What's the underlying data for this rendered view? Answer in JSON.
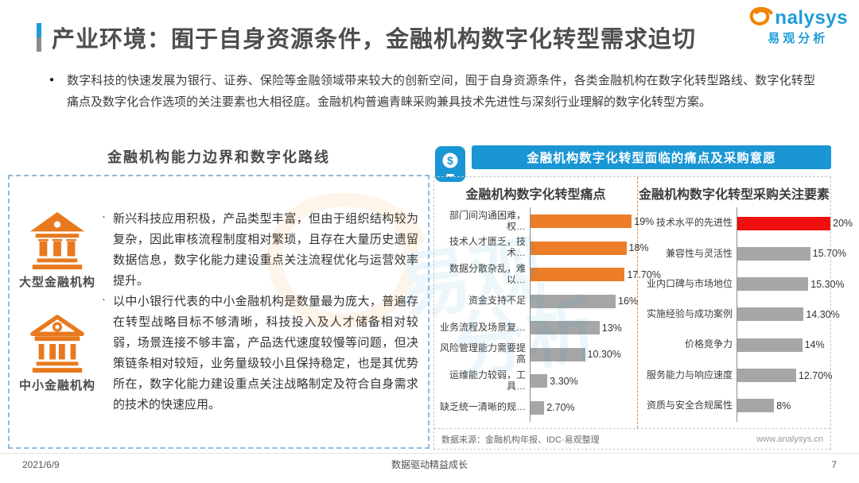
{
  "page": {
    "title": "产业环境：囿于自身资源条件，金融机构数字化转型需求迫切",
    "bullet": "●",
    "intro": "数字科技的快速发展为银行、证券、保险等金融领域带来较大的创新空间，囿于自身资源条件，各类金融机构在数字化转型路线、数字化转型痛点及数字化合作选项的关注要素也大相径庭。金融机构普遍青睐采购兼具技术先进性与深刻行业理解的数字化转型方案。",
    "footer": {
      "date": "2021/6/9",
      "slogan": "数据驱动精益成长",
      "page_number": "7"
    }
  },
  "logo": {
    "brand_text": "nalysys",
    "brand_cn": "易观分析",
    "swirl_icon": "analysys-swirl-icon"
  },
  "left_panel": {
    "heading": "金融机构能力边界和数字化路线",
    "item_bullet": "·",
    "items": [
      {
        "label": "大型金融机构",
        "icon": "bank-solid-icon",
        "text": "新兴科技应用积极，产品类型丰富，但由于组织结构较为复杂，因此审核流程制度相对繁琐，且存在大量历史遗留数据信息，数字化能力建设重点关注流程优化与运营效率提升。"
      },
      {
        "label": "中小金融机构",
        "icon": "bank-outline-icon",
        "text": "以中小银行代表的中小金融机构是数量最为庞大，普遍存在转型战略目标不够清晰，科技投入及人才储备相对较弱，场景连接不够丰富，产品迭代速度较慢等问题，但决策链条相对较短，业务量级较小且保持稳定，也是其优势所在，数字化能力建设重点关注战略制定及符合自身需求的技术的快速应用。"
      }
    ]
  },
  "right_panel": {
    "heading": "金融机构数字化转型面临的痛点及采购意愿",
    "header_icon": "mobile-payment-icon",
    "icon_symbol": "$",
    "source": "数据来源：金融机构年报、IDC·易观整理",
    "website": "www.analysys.cn"
  },
  "chart_data": [
    {
      "type": "bar",
      "orientation": "horizontal",
      "title": "金融机构数字化转型痛点",
      "categories": [
        "部门间沟通困难，权…",
        "技术人才匮乏，技术…",
        "数据分散杂乱，难以…",
        "资金支持不足",
        "业务流程及场景复…",
        "风险管理能力需要提高",
        "运维能力较弱，工具…",
        "缺乏统一清晰的规…"
      ],
      "values": [
        19,
        18,
        17.7,
        16,
        13,
        10.3,
        3.3,
        2.7
      ],
      "labels": [
        "19%",
        "18%",
        "17.70%",
        "16%",
        "13%",
        "10.30%",
        "3.30%",
        "2.70%"
      ],
      "xlim": [
        0,
        20
      ],
      "highlight_count": 3,
      "highlight_color": "#ED7D28",
      "bar_color": "#A6A6A6",
      "grid": false,
      "legend": false
    },
    {
      "type": "bar",
      "orientation": "horizontal",
      "title": "金融机构数字化转型采购关注要素",
      "categories": [
        "技术水平的先进性",
        "兼容性与灵活性",
        "业内口碑与市场地位",
        "实施经验与成功案例",
        "价格竞争力",
        "服务能力与响应速度",
        "资质与安全合规属性"
      ],
      "values": [
        20,
        15.7,
        15.3,
        14.3,
        14,
        12.7,
        8
      ],
      "labels": [
        "20%",
        "15.70%",
        "15.30%",
        "14.30%",
        "14%",
        "12.70%",
        "8%"
      ],
      "xlim": [
        0,
        20
      ],
      "highlight_count": 1,
      "highlight_color": "#EE0F0F",
      "bar_color": "#A6A6A6",
      "grid": false,
      "legend": false
    }
  ],
  "colors": {
    "accent_blue": "#1E9CD7",
    "header_bar_blue": "#1A96D5",
    "orange": "#E8791E",
    "pain_highlight": "#ED7D28",
    "purchase_highlight": "#EE0F0F",
    "bar_gray": "#A6A6A6",
    "box_border_blue": "#8FB9E2",
    "divider_orange": "#E8823A"
  }
}
